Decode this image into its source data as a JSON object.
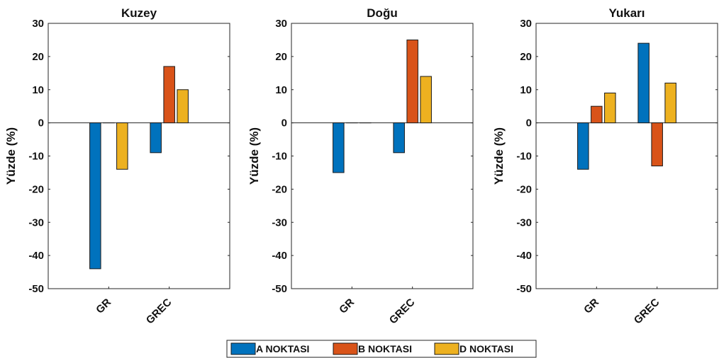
{
  "chart_data": {
    "type": "bar",
    "categories": [
      "GR",
      "GREC"
    ],
    "ylabel": "Yüzde (%)",
    "ylim": [
      -50,
      30
    ],
    "yticks": [
      30,
      20,
      10,
      0,
      -10,
      -20,
      -30,
      -40,
      -50
    ],
    "grid": false,
    "legend_position": "bottom",
    "series_colors": [
      "#0072BD",
      "#D95319",
      "#EDB120"
    ],
    "series_names": [
      "A NOKTASI",
      "B NOKTASI",
      "D NOKTASI"
    ],
    "panels": [
      {
        "title": "Kuzey",
        "series": [
          {
            "name": "A NOKTASI",
            "values": [
              -44,
              -9
            ]
          },
          {
            "name": "B NOKTASI",
            "values": [
              0,
              17
            ]
          },
          {
            "name": "D NOKTASI",
            "values": [
              -14,
              10
            ]
          }
        ]
      },
      {
        "title": "Doğu",
        "series": [
          {
            "name": "A NOKTASI",
            "values": [
              -15,
              -9
            ]
          },
          {
            "name": "B NOKTASI",
            "values": [
              0,
              25
            ]
          },
          {
            "name": "D NOKTASI",
            "values": [
              0,
              14
            ]
          }
        ]
      },
      {
        "title": "Yukarı",
        "series": [
          {
            "name": "A NOKTASI",
            "values": [
              -14,
              24
            ]
          },
          {
            "name": "B NOKTASI",
            "values": [
              5,
              -13
            ]
          },
          {
            "name": "D NOKTASI",
            "values": [
              9,
              12
            ]
          }
        ]
      }
    ]
  }
}
